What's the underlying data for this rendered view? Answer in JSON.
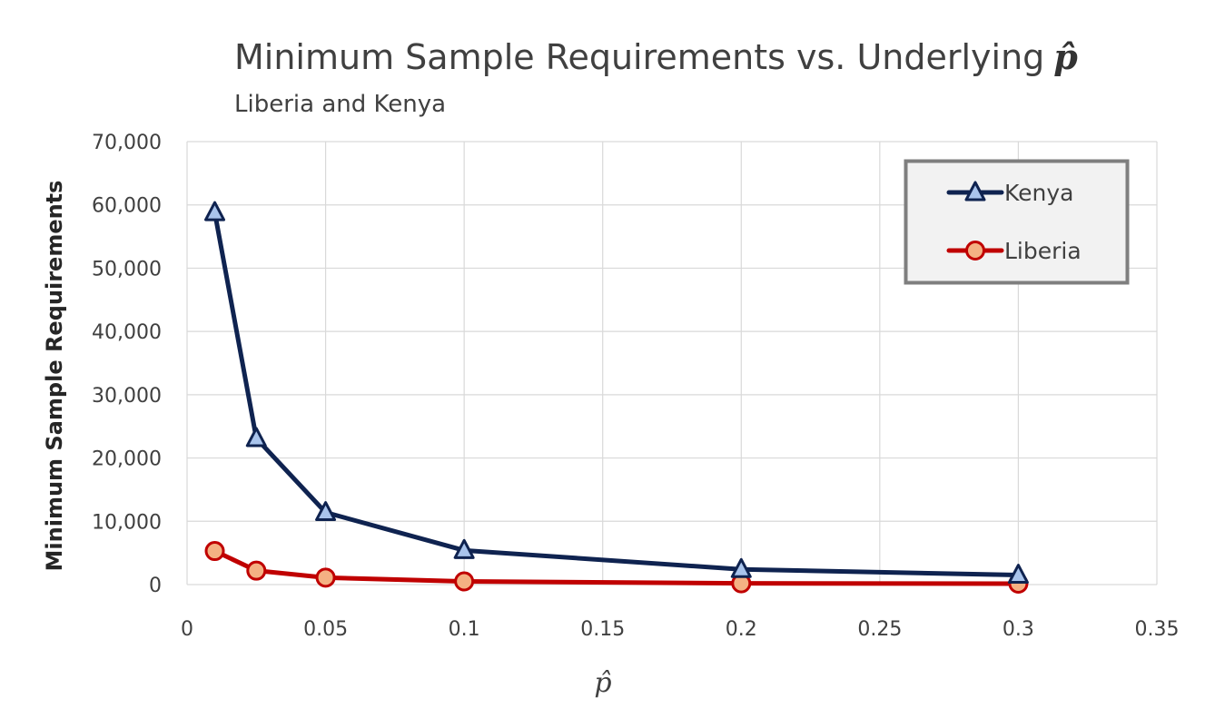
{
  "chart_data": {
    "type": "line",
    "title": "Minimum Sample Requirements vs. Underlying",
    "title_symbol": "p̂",
    "subtitle": "Liberia and Kenya",
    "xlabel": "p̂",
    "ylabel": "Minimum Sample Requirements",
    "xlim": [
      0,
      0.35
    ],
    "ylim": [
      0,
      70000
    ],
    "x_ticks": [
      "0",
      "0.05",
      "0.1",
      "0.15",
      "0.2",
      "0.25",
      "0.3",
      "0.35"
    ],
    "y_ticks": [
      "0",
      "10,000",
      "20,000",
      "30,000",
      "40,000",
      "50,000",
      "60,000",
      "70,000"
    ],
    "grid": true,
    "legend_position": "top-right",
    "series": [
      {
        "name": "Kenya",
        "color": "#0f2350",
        "marker": "triangle",
        "marker_fill": "#a9c4ec",
        "x": [
          0.01,
          0.025,
          0.05,
          0.1,
          0.2,
          0.3
        ],
        "y": [
          58800,
          23100,
          11400,
          5400,
          2400,
          1500
        ]
      },
      {
        "name": "Liberia",
        "color": "#c00000",
        "marker": "circle",
        "marker_fill": "#f4b183",
        "x": [
          0.01,
          0.025,
          0.05,
          0.1,
          0.2,
          0.3
        ],
        "y": [
          5300,
          2200,
          1100,
          500,
          200,
          150
        ]
      }
    ]
  }
}
